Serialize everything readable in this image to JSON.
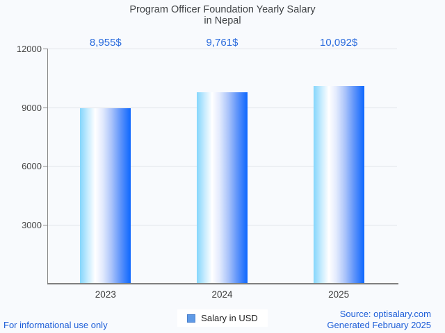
{
  "title": {
    "line1": "Program Officer Foundation Yearly Salary",
    "line2": "in Nepal"
  },
  "chart_data": {
    "type": "bar",
    "title": "Program Officer Foundation Yearly Salary in Nepal",
    "categories": [
      "2023",
      "2024",
      "2025"
    ],
    "values": [
      8955,
      9761,
      10092
    ],
    "value_labels": [
      "8,955$",
      "9,761$",
      "10,092$"
    ],
    "series_name": "Salary in USD",
    "xlabel": "",
    "ylabel": "",
    "ylim": [
      0,
      12000
    ],
    "yticks": [
      3000,
      6000,
      9000,
      12000
    ],
    "grid": true,
    "legend_position": "bottom"
  },
  "legend": {
    "label": "Salary in USD",
    "swatch_color": "#5f9ae6"
  },
  "footer": {
    "left": "For informational use only",
    "source": "Source: optisalary.com",
    "generated": "Generated February 2025"
  },
  "colors": {
    "background": "#f8fafd",
    "bar_gradient_left": "#84d6fc",
    "bar_gradient_mid": "#ffffff",
    "bar_gradient_right": "#0d67fe",
    "value_label": "#2b6cdd",
    "footer_text": "#1d5ed8",
    "title_text": "#3f4245",
    "axis_line": "#7f7f7f",
    "gridline": "#e1e4e9"
  }
}
